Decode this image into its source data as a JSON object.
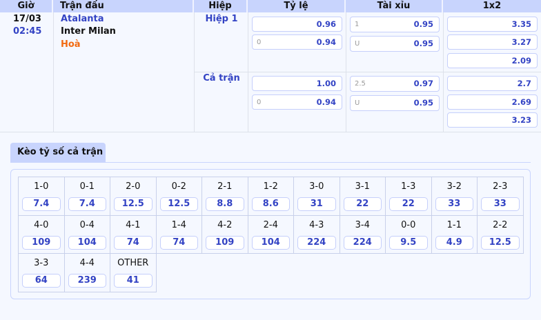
{
  "header": {
    "time": "Giờ",
    "match": "Trận đấu",
    "half": "Hiệp",
    "handicap": "Tỷ lệ",
    "overunder": "Tài xỉu",
    "x12": "1x2"
  },
  "match": {
    "date": "17/03",
    "time": "02:45",
    "home": "Atalanta",
    "away": "Inter Milan",
    "draw": "Hoà"
  },
  "periods": [
    {
      "label": "Hiệp 1",
      "handicap": [
        {
          "line": "",
          "odd": "0.96"
        },
        {
          "line": "0",
          "odd": "0.94"
        }
      ],
      "overunder": [
        {
          "line": "1",
          "odd": "0.95"
        },
        {
          "line": "U",
          "odd": "0.95"
        }
      ],
      "x12": [
        "3.35",
        "3.27",
        "2.09"
      ]
    },
    {
      "label": "Cả trận",
      "handicap": [
        {
          "line": "",
          "odd": "1.00"
        },
        {
          "line": "0",
          "odd": "0.94"
        }
      ],
      "overunder": [
        {
          "line": "2.5",
          "odd": "0.97"
        },
        {
          "line": "U",
          "odd": "0.95"
        }
      ],
      "x12": [
        "2.7",
        "2.69",
        "3.23"
      ]
    }
  ],
  "correct_score": {
    "tab_label": "Kèo tỷ số cả trận",
    "items": [
      {
        "score": "1-0",
        "odd": "7.4"
      },
      {
        "score": "0-1",
        "odd": "7.4"
      },
      {
        "score": "2-0",
        "odd": "12.5"
      },
      {
        "score": "0-2",
        "odd": "12.5"
      },
      {
        "score": "2-1",
        "odd": "8.8"
      },
      {
        "score": "1-2",
        "odd": "8.6"
      },
      {
        "score": "3-0",
        "odd": "31"
      },
      {
        "score": "3-1",
        "odd": "22"
      },
      {
        "score": "1-3",
        "odd": "22"
      },
      {
        "score": "3-2",
        "odd": "33"
      },
      {
        "score": "2-3",
        "odd": "33"
      },
      {
        "score": "4-0",
        "odd": "109"
      },
      {
        "score": "0-4",
        "odd": "104"
      },
      {
        "score": "4-1",
        "odd": "74"
      },
      {
        "score": "1-4",
        "odd": "74"
      },
      {
        "score": "4-2",
        "odd": "109"
      },
      {
        "score": "2-4",
        "odd": "104"
      },
      {
        "score": "4-3",
        "odd": "224"
      },
      {
        "score": "3-4",
        "odd": "224"
      },
      {
        "score": "0-0",
        "odd": "9.5"
      },
      {
        "score": "1-1",
        "odd": "4.9"
      },
      {
        "score": "2-2",
        "odd": "12.5"
      },
      {
        "score": "3-3",
        "odd": "64"
      },
      {
        "score": "4-4",
        "odd": "239"
      },
      {
        "score": "OTHER",
        "odd": "41"
      }
    ]
  },
  "colors": {
    "accent": "#3343c4",
    "header_bg": "#c8d4fd",
    "draw": "#f26a10"
  }
}
